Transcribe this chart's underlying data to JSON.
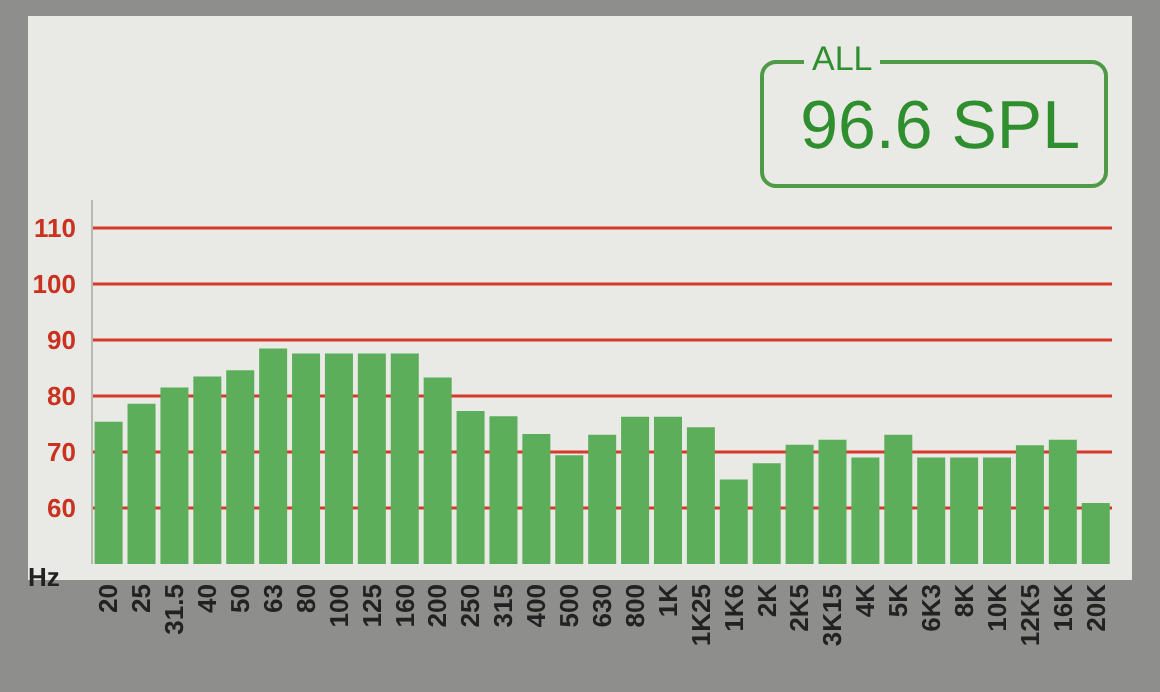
{
  "chart_data": {
    "type": "bar",
    "xlabel": "Hz",
    "categories": [
      "20",
      "25",
      "31.5",
      "40",
      "50",
      "63",
      "80",
      "100",
      "125",
      "160",
      "200",
      "250",
      "315",
      "400",
      "500",
      "630",
      "800",
      "1K",
      "1K25",
      "1K6",
      "2K",
      "2K5",
      "3K15",
      "4K",
      "5K",
      "6K3",
      "8K",
      "10K",
      "12K5",
      "16K",
      "20K"
    ],
    "values": [
      75.4,
      78.6,
      81.5,
      83.5,
      84.6,
      88.5,
      87.6,
      87.6,
      87.6,
      87.6,
      83.3,
      77.3,
      76.4,
      73.2,
      69.4,
      73.1,
      76.3,
      76.3,
      74.4,
      65.1,
      68,
      71.3,
      72.2,
      69,
      73.1,
      69,
      69,
      69,
      71.2,
      72.2,
      60.9
    ],
    "color": "#5cae5a",
    "ylim": [
      50,
      115
    ],
    "yticks": [
      60,
      70,
      80,
      90,
      100,
      110
    ],
    "grid": "y",
    "annotations": [
      "ALL",
      "96.6 SPL"
    ]
  }
}
